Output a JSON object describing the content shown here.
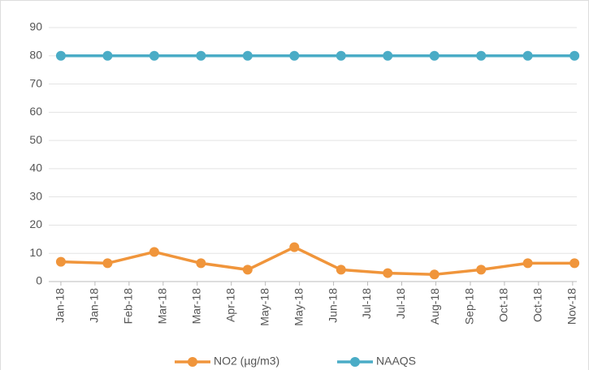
{
  "chart_data": {
    "type": "line",
    "x": [
      0,
      1,
      2,
      3,
      4,
      5,
      6,
      7,
      8,
      9,
      10,
      11
    ],
    "series": [
      {
        "name": "NO2 (µg/m3)",
        "color": "#f0953b",
        "values": [
          7,
          6.5,
          10.5,
          6.5,
          4.2,
          12.2,
          4.2,
          3,
          2.5,
          4.2,
          6.5,
          6.5
        ]
      },
      {
        "name": "NAAQS",
        "color": "#4aacc6",
        "values": [
          80,
          80,
          80,
          80,
          80,
          80,
          80,
          80,
          80,
          80,
          80,
          80
        ]
      }
    ],
    "xlim": [
      -0.26,
      11.05
    ],
    "xticks": [
      {
        "value": 0,
        "label": "Jan-18"
      },
      {
        "value": 0.73,
        "label": "Jan-18"
      },
      {
        "value": 1.46,
        "label": "Feb-18"
      },
      {
        "value": 2.19,
        "label": "Mar-18"
      },
      {
        "value": 2.92,
        "label": "Mar-18"
      },
      {
        "value": 3.65,
        "label": "Apr-18"
      },
      {
        "value": 4.38,
        "label": "May-18"
      },
      {
        "value": 5.11,
        "label": "May-18"
      },
      {
        "value": 5.84,
        "label": "Jun-18"
      },
      {
        "value": 6.57,
        "label": "Jul-18"
      },
      {
        "value": 7.3,
        "label": "Jul-18"
      },
      {
        "value": 8.03,
        "label": "Aug-18"
      },
      {
        "value": 8.77,
        "label": "Sep-18"
      },
      {
        "value": 9.5,
        "label": "Oct-18"
      },
      {
        "value": 10.23,
        "label": "Oct-18"
      },
      {
        "value": 10.96,
        "label": "Nov-18"
      }
    ],
    "ylim": [
      0,
      90
    ],
    "yticks": [
      0,
      10,
      20,
      30,
      40,
      50,
      60,
      70,
      80,
      90
    ],
    "grid": true,
    "legend": "bottom"
  }
}
